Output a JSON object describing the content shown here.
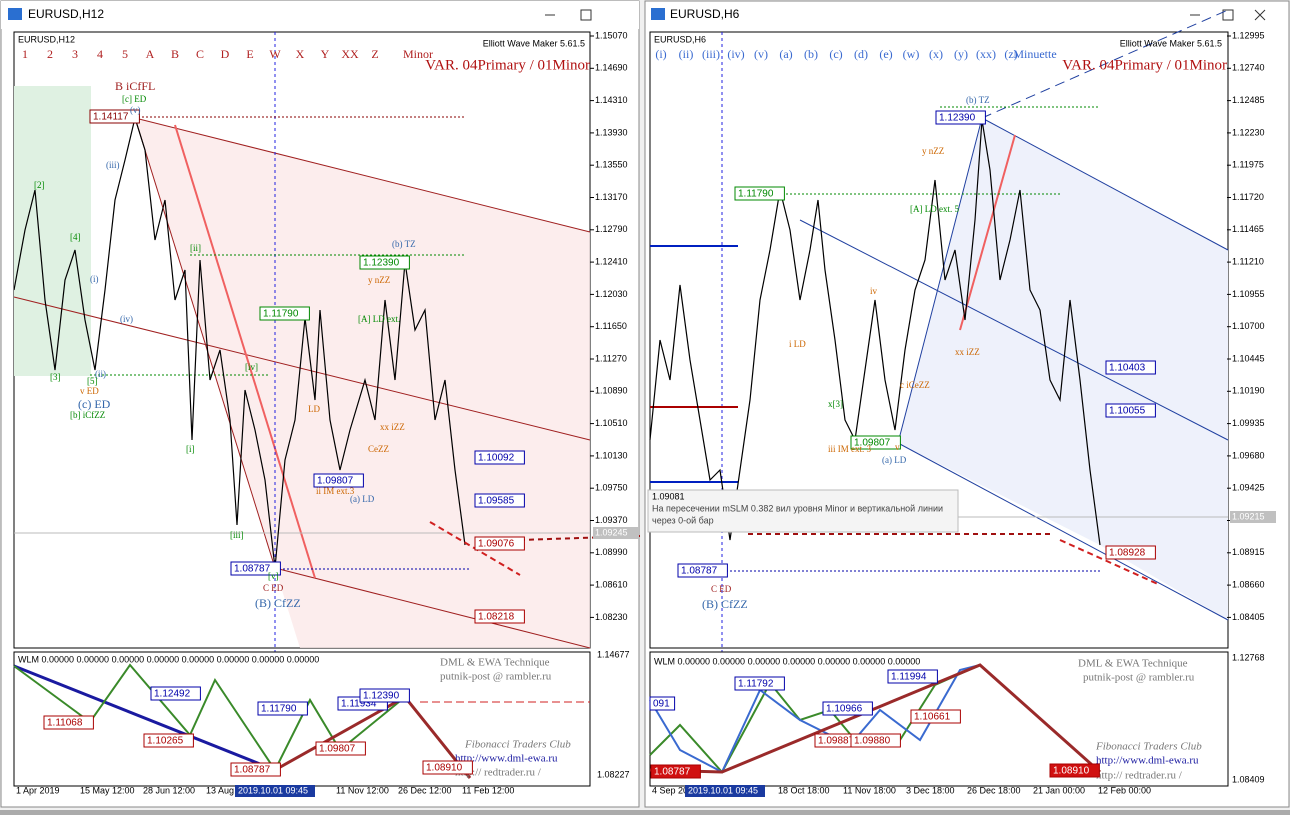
{
  "windows": [
    {
      "title": "EURUSD,H12",
      "symbol": "EURUSD,H12",
      "wave_row": [
        "1",
        "2",
        "3",
        "4",
        "5",
        "A",
        "B",
        "C",
        "D",
        "E",
        "W",
        "X",
        "Y",
        "XX",
        "Z",
        "Minor"
      ],
      "indicator": "Elliott Wave Maker 5.61.5",
      "variant": "VAR. 04Primary / 01Minor",
      "price_axis": [
        "1.15070",
        "1.14690",
        "1.14310",
        "1.13930",
        "1.13550",
        "1.13170",
        "1.12790",
        "1.12410",
        "1.12030",
        "1.11650",
        "1.11270",
        "1.10890",
        "1.10510",
        "1.10130",
        "1.09750",
        "1.09370",
        "1.08990",
        "1.08610",
        "1.08230"
      ],
      "current_price": "1.09245",
      "price_tags": [
        "1.14117",
        "1.12390",
        "1.11790",
        "1.09807",
        "1.08787",
        "1.10092",
        "1.09585",
        "1.09076",
        "1.08218"
      ],
      "annotations": [
        "B iCfFL",
        "[c] ED",
        "(v)",
        "(iii)",
        "(iv)",
        "(i)",
        "(ii)",
        "[2]",
        "[4]",
        "[3]",
        "[5]",
        "v ED",
        "(c) ED",
        "[b] iCfZZ",
        "[ii]",
        "[i]",
        "[iii]",
        "[iv]",
        "(b) TZ",
        "y nZZ",
        "[A] LD ext.",
        "ii IM ext.3",
        "(a) LD",
        "xx iZZ",
        "CeZZ",
        "C ED",
        "(B) CfZZ",
        "LD",
        "[v]"
      ],
      "sub": {
        "wlm": "WLM 0.00000 0.00000 0.00000 0.00000 0.00000 0.00000 0.00000 0.00000",
        "credits": [
          "DML & EWA Technique",
          "putnik-post @ rambler.ru",
          "Fibonacci Traders Club",
          "http://www.dml-ewa.ru",
          "http:// redtrader.ru /"
        ],
        "axis": [
          "1.14677",
          "1.08227"
        ],
        "tags": [
          "1.12492",
          "1.11068",
          "1.10265",
          "1.08787",
          "1.11790",
          "1.11934",
          "1.12390",
          "1.09807",
          "1.08910"
        ]
      },
      "time_axis": [
        "1 Apr 2019",
        "15 May 12:00",
        "28 Jun 12:00",
        "13 Aug",
        "2019.10.01 09:45",
        "11 Nov 12:00",
        "26 Dec 12:00",
        "11 Feb 12:00"
      ]
    },
    {
      "title": "EURUSD,H6",
      "symbol": "EURUSD,H6",
      "wave_row": [
        "(i)",
        "(ii)",
        "(iii)",
        "(iv)",
        "(v)",
        "(a)",
        "(b)",
        "(c)",
        "(d)",
        "(e)",
        "(w)",
        "(x)",
        "(y)",
        "(xx)",
        "(z)",
        "Minuette"
      ],
      "indicator": "Elliott Wave Maker 5.61.5",
      "variant": "VAR. 04Primary / 01Minor",
      "price_axis": [
        "1.12995",
        "1.12740",
        "1.12485",
        "1.12230",
        "1.11975",
        "1.11720",
        "1.11465",
        "1.11210",
        "1.10955",
        "1.10700",
        "1.10445",
        "1.10190",
        "1.09935",
        "1.09680",
        "1.09425",
        "1.09170",
        "1.08915",
        "1.08660",
        "1.08405"
      ],
      "current_price": "1.09215",
      "price_tags": [
        "1.12390",
        "1.11790",
        "1.09807",
        "1.08787",
        "1.10403",
        "1.10055",
        "1.08928"
      ],
      "annotations": [
        "(b) TZ",
        "y nZZ",
        "[A] LD ext. 5",
        "i LD",
        "iii IM ext. 3",
        "(a) LD",
        "xx iZZ",
        "C ED",
        "(B) CfZZ",
        "iv",
        "v",
        "x[3]",
        "c iCeZZ"
      ],
      "sub": {
        "wlm": "WLM 0.00000 0.00000 0.00000 0.00000 0.00000 0.00000 0.00000",
        "credits": [
          "DML & EWA Technique",
          "putnik-post @ rambler.ru",
          "Fibonacci Traders Club",
          "http://www.dml-ewa.ru",
          "http:// redtrader.ru /"
        ],
        "axis": [
          "1.12768",
          "1.08409"
        ],
        "tags": [
          "1.11792",
          "1.11994",
          "1.10966",
          "1.10661",
          "1.09887",
          "1.09880",
          "1.08787",
          "1.08910",
          "091"
        ]
      },
      "time_axis": [
        "4 Sep 20",
        "2019.10.01 09:45",
        "18 Oct 18:00",
        "11 Nov 18:00",
        "3 Dec 18:00",
        "26 Dec 18:00",
        "21 Jan 00:00",
        "12 Feb 00:00"
      ],
      "tooltip": [
        "1.09081",
        "На пересечении mSLM 0.382 вил уровня Minor и вертикальной линии",
        "через 0-ой бар"
      ]
    }
  ]
}
